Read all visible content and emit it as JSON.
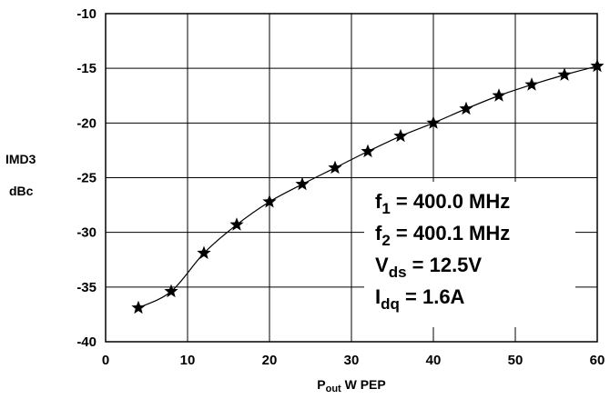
{
  "chart_data": {
    "type": "line",
    "title": "",
    "xlabel_main": "P",
    "xlabel_sub": "out",
    "xlabel_rest": " W PEP",
    "ylabel_line1": "IMD3",
    "ylabel_line2": "dBc",
    "xlim": [
      0,
      60
    ],
    "ylim": [
      -40,
      -10
    ],
    "x_ticks": [
      0,
      10,
      20,
      30,
      40,
      50,
      60
    ],
    "y_ticks": [
      -10,
      -15,
      -20,
      -25,
      -30,
      -35,
      -40
    ],
    "grid": true,
    "marker": "star",
    "series": [
      {
        "x": [
          4,
          8,
          12,
          16,
          20,
          24,
          28,
          32,
          36,
          40,
          44,
          48,
          52,
          56,
          60
        ],
        "y": [
          -36.9,
          -35.4,
          -31.9,
          -29.3,
          -27.2,
          -25.6,
          -24.1,
          -22.6,
          -21.2,
          -20.0,
          -18.7,
          -17.5,
          -16.5,
          -15.6,
          -14.8
        ]
      }
    ],
    "annotation": [
      {
        "main": "f",
        "sub": "1",
        "rest": "  = 400.0 MHz"
      },
      {
        "main": "f",
        "sub": "2",
        "rest": "  = 400.1 MHz"
      },
      {
        "main": "V",
        "sub": "ds",
        "rest": " = 12.5V"
      },
      {
        "main": "I",
        "sub": "dq",
        "rest": " = 1.6A"
      }
    ]
  }
}
